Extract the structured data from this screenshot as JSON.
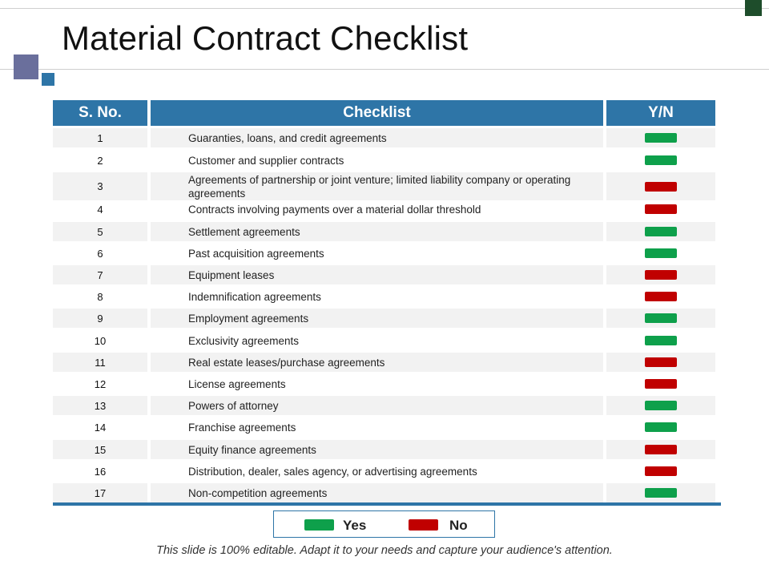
{
  "title": "Material Contract Checklist",
  "colors": {
    "header": "#2e75a7",
    "yes": "#0ea04b",
    "no": "#c00000"
  },
  "headers": {
    "sno": "S. No.",
    "checklist": "Checklist",
    "yn": "Y/N"
  },
  "rows": [
    {
      "no": "1",
      "text": "Guaranties, loans, and credit agreements",
      "status": "yes"
    },
    {
      "no": "2",
      "text": "Customer and supplier contracts",
      "status": "yes"
    },
    {
      "no": "3",
      "text": "Agreements of partnership or joint venture; limited liability company or operating agreements",
      "status": "no"
    },
    {
      "no": "4",
      "text": "Contracts involving payments over a material dollar threshold",
      "status": "no"
    },
    {
      "no": "5",
      "text": "Settlement agreements",
      "status": "yes"
    },
    {
      "no": "6",
      "text": "Past acquisition agreements",
      "status": "yes"
    },
    {
      "no": "7",
      "text": "Equipment leases",
      "status": "no"
    },
    {
      "no": "8",
      "text": "Indemnification agreements",
      "status": "no"
    },
    {
      "no": "9",
      "text": "Employment agreements",
      "status": "yes"
    },
    {
      "no": "10",
      "text": "Exclusivity agreements",
      "status": "yes"
    },
    {
      "no": "11",
      "text": "Real estate leases/purchase agreements",
      "status": "no"
    },
    {
      "no": "12",
      "text": "License agreements",
      "status": "no"
    },
    {
      "no": "13",
      "text": "Powers of attorney",
      "status": "yes"
    },
    {
      "no": "14",
      "text": "Franchise agreements",
      "status": "yes"
    },
    {
      "no": "15",
      "text": "Equity finance agreements",
      "status": "no"
    },
    {
      "no": "16",
      "text": "Distribution, dealer, sales agency, or advertising agreements",
      "status": "no"
    },
    {
      "no": "17",
      "text": "Non-competition agreements",
      "status": "yes"
    }
  ],
  "legend": {
    "yes_label": "Yes",
    "no_label": "No"
  },
  "footer": "This slide is 100% editable. Adapt it to your needs and capture your audience's attention."
}
